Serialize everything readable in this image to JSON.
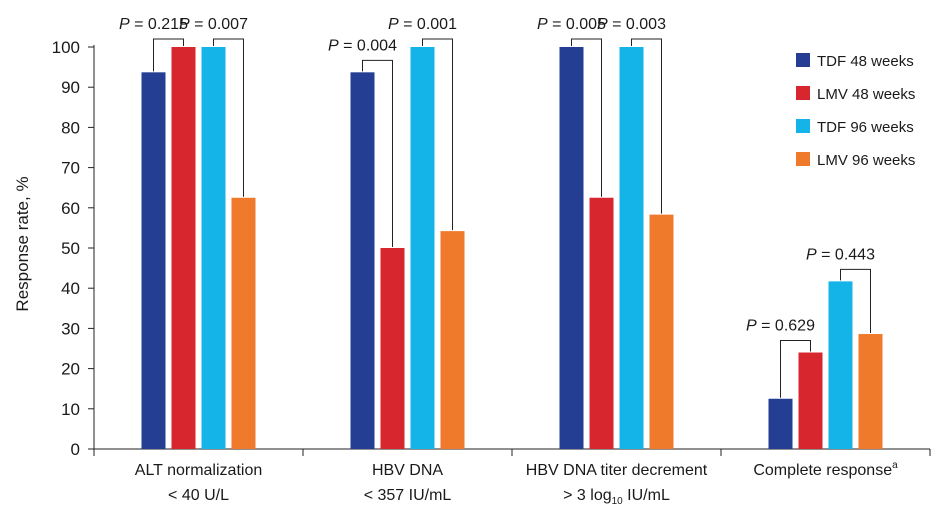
{
  "chart_data": {
    "type": "bar",
    "ylabel": "Response rate, %",
    "ylim": [
      0,
      100
    ],
    "yticks": [
      0,
      10,
      20,
      30,
      40,
      50,
      60,
      70,
      80,
      90,
      100
    ],
    "grid": false,
    "legend_position": "top-right",
    "categories": [
      {
        "line1": "ALT normalization",
        "line2": "< 40 U/L"
      },
      {
        "line1": "HBV DNA",
        "line2": "< 357 IU/mL"
      },
      {
        "line1": "HBV DNA titer decrement",
        "line2_pre": "> 3 log",
        "line2_sub": "10",
        "line2_post": " IU/mL"
      },
      {
        "line1": "Complete response",
        "line1_sup": "a"
      }
    ],
    "series": [
      {
        "name": "TDF 48 weeks",
        "color": "#233e93",
        "values": [
          93.7,
          93.7,
          100,
          12.5
        ]
      },
      {
        "name": "LMV 48 weeks",
        "color": "#d8262e",
        "values": [
          100,
          50,
          62.5,
          24
        ]
      },
      {
        "name": "TDF 96 weeks",
        "color": "#14b4e8",
        "values": [
          100,
          100,
          100,
          41.7
        ]
      },
      {
        "name": "LMV 96 weeks",
        "color": "#f07a2b",
        "values": [
          62.5,
          54.2,
          58.3,
          28.6
        ]
      }
    ],
    "p_values": [
      {
        "category": 0,
        "from": 0,
        "to": 1,
        "label": "0.215"
      },
      {
        "category": 0,
        "from": 2,
        "to": 3,
        "label": "0.007"
      },
      {
        "category": 1,
        "from": 0,
        "to": 1,
        "label": "0.004"
      },
      {
        "category": 1,
        "from": 2,
        "to": 3,
        "label": "0.001"
      },
      {
        "category": 2,
        "from": 0,
        "to": 1,
        "label": "0.005"
      },
      {
        "category": 2,
        "from": 2,
        "to": 3,
        "label": "0.003"
      },
      {
        "category": 3,
        "from": 0,
        "to": 1,
        "label": "0.629"
      },
      {
        "category": 3,
        "from": 2,
        "to": 3,
        "label": "0.443"
      }
    ],
    "p_prefix": "P",
    "p_eq": " = "
  }
}
